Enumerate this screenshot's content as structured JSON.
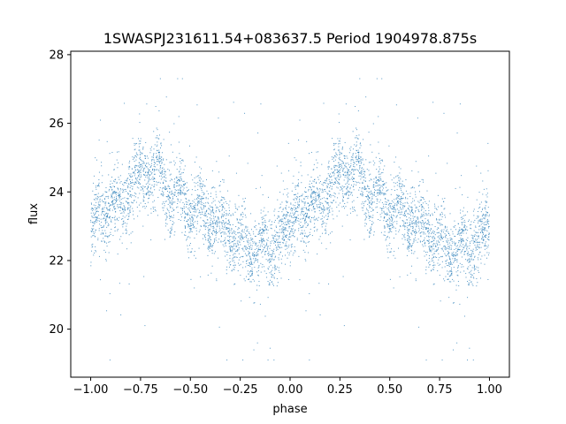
{
  "chart_data": {
    "type": "scatter",
    "title": "1SWASPJ231611.54+083637.5 Period 1904978.875s",
    "xlabel": "phase",
    "ylabel": "flux",
    "xlim": [
      -1.1,
      1.1
    ],
    "ylim": [
      18.6,
      28.1
    ],
    "xticks": [
      -1.0,
      -0.75,
      -0.5,
      -0.25,
      0.0,
      0.25,
      0.5,
      0.75,
      1.0
    ],
    "xtick_labels": [
      "−1.00",
      "−0.75",
      "−0.50",
      "−0.25",
      "0.00",
      "0.25",
      "0.50",
      "0.75",
      "1.00"
    ],
    "yticks": [
      20,
      22,
      24,
      26,
      28
    ],
    "ytick_labels": [
      "20",
      "22",
      "24",
      "26",
      "28"
    ],
    "grid": false,
    "marker_color": "#1f77b4",
    "trend": {
      "phase": [
        0.0,
        0.05,
        0.1,
        0.15,
        0.2,
        0.25,
        0.3,
        0.35,
        0.4,
        0.45,
        0.5,
        0.55,
        0.6,
        0.65,
        0.7,
        0.75,
        0.8,
        0.85,
        0.9,
        0.95,
        1.0
      ],
      "flux": [
        22.8,
        23.3,
        23.6,
        23.5,
        24.2,
        24.4,
        24.6,
        24.4,
        24.0,
        23.8,
        23.6,
        23.4,
        23.2,
        23.0,
        22.8,
        22.6,
        22.4,
        22.3,
        22.5,
        22.6,
        22.8
      ]
    }
  }
}
